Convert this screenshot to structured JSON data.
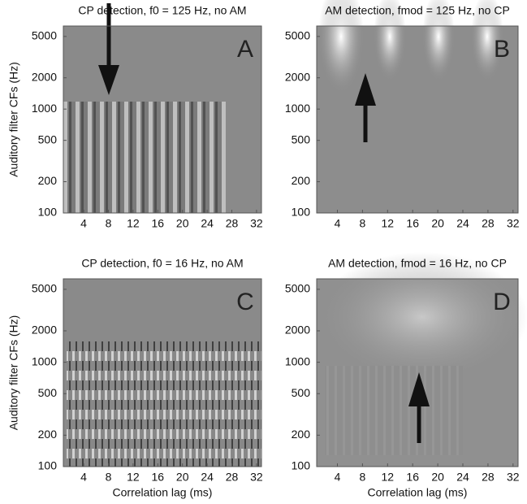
{
  "chart_data": [
    {
      "type": "image",
      "title": "CP detection, f0 = 125 Hz, no AM",
      "ylabel": "Auditory filter CFs (Hz)",
      "annotation": "A",
      "xlim": [
        0.7,
        32.8
      ],
      "xticks": [
        4,
        8,
        12,
        16,
        20,
        24,
        28,
        32
      ],
      "ylim": [
        100,
        6300
      ],
      "yticks": [
        100,
        200,
        500,
        1000,
        2000,
        5000
      ],
      "log_y": true
    },
    {
      "type": "image",
      "title": "AM detection, fmod = 125 Hz, no CP",
      "annotation": "B",
      "xlim": [
        0.7,
        32.8
      ],
      "xticks": [
        4,
        8,
        12,
        16,
        20,
        24,
        28,
        32
      ],
      "ylim": [
        100,
        6300
      ],
      "yticks": [
        100,
        200,
        500,
        1000,
        2000,
        5000
      ],
      "log_y": true
    },
    {
      "type": "image",
      "title": "CP detection, f0 = 16 Hz, no AM",
      "ylabel": "Auditory filter CFs (Hz)",
      "xlabel": "Correlation lag (ms)",
      "annotation": "C",
      "xlim": [
        0.7,
        32.8
      ],
      "xticks": [
        4,
        8,
        12,
        16,
        20,
        24,
        28,
        32
      ],
      "ylim": [
        100,
        6300
      ],
      "yticks": [
        100,
        200,
        500,
        1000,
        2000,
        5000
      ],
      "log_y": true
    },
    {
      "type": "image",
      "title": "AM detection, fmod = 16 Hz, no CP",
      "xlabel": "Correlation lag (ms)",
      "annotation": "D",
      "xlim": [
        0.7,
        32.8
      ],
      "xticks": [
        4,
        8,
        12,
        16,
        20,
        24,
        28,
        32
      ],
      "ylim": [
        100,
        6300
      ],
      "yticks": [
        100,
        200,
        500,
        1000,
        2000,
        5000
      ],
      "log_y": true
    }
  ]
}
